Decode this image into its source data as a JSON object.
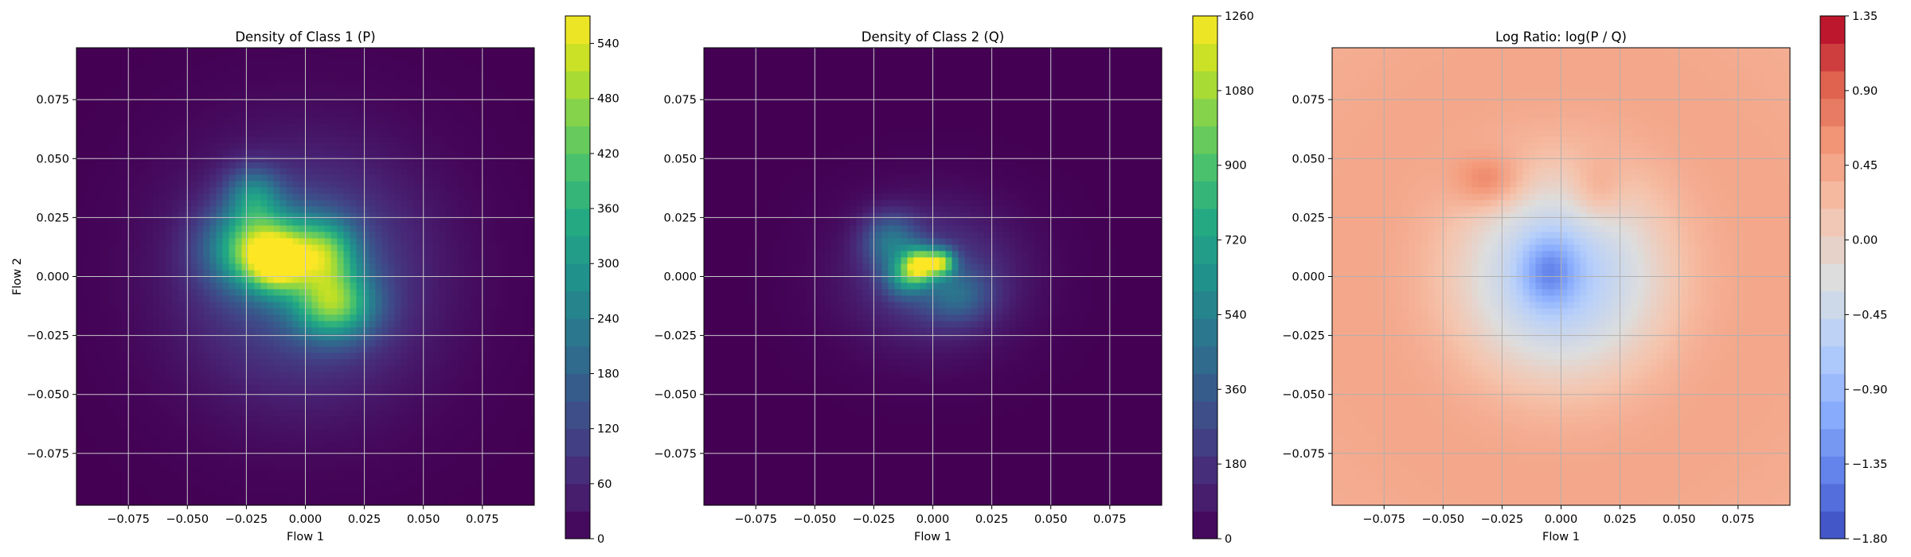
{
  "chart_data": [
    {
      "type": "heatmap",
      "title": "Density of Class 1 (P)",
      "xlabel": "Flow 1",
      "ylabel": "Flow 2",
      "xlim": [
        -0.097,
        0.097
      ],
      "ylim": [
        -0.097,
        0.097
      ],
      "xticks": [
        -0.075,
        -0.05,
        -0.025,
        0.0,
        0.025,
        0.05,
        0.075
      ],
      "yticks": [
        -0.075,
        -0.05,
        -0.025,
        0.0,
        0.025,
        0.05,
        0.075
      ],
      "xtick_labels": [
        "−0.075",
        "−0.050",
        "−0.025",
        "0.000",
        "0.025",
        "0.050",
        "0.075"
      ],
      "ytick_labels": [
        "−0.075",
        "−0.050",
        "−0.025",
        "0.000",
        "0.025",
        "0.050",
        "0.075"
      ],
      "grid": true,
      "colormap": "viridis",
      "colorbar": {
        "min": 0,
        "max": 570,
        "ticks": [
          0,
          60,
          120,
          180,
          240,
          300,
          360,
          420,
          480,
          540
        ],
        "labels": [
          "0",
          "60",
          "120",
          "180",
          "240",
          "300",
          "360",
          "420",
          "480",
          "540"
        ]
      },
      "blobs": [
        {
          "x": -0.02,
          "y": 0.012,
          "sx": 0.014,
          "sy": 0.012,
          "v": 400
        },
        {
          "x": -0.012,
          "y": 0.005,
          "sx": 0.008,
          "sy": 0.008,
          "v": 260
        },
        {
          "x": 0.008,
          "y": 0.01,
          "sx": 0.01,
          "sy": 0.01,
          "v": 300
        },
        {
          "x": 0.012,
          "y": -0.012,
          "sx": 0.012,
          "sy": 0.01,
          "v": 340
        },
        {
          "x": -0.022,
          "y": 0.035,
          "sx": 0.008,
          "sy": 0.008,
          "v": 180
        },
        {
          "x": 0.0,
          "y": 0.0,
          "sx": 0.035,
          "sy": 0.035,
          "v": 150
        }
      ]
    },
    {
      "type": "heatmap",
      "title": "Density of Class 2 (Q)",
      "xlabel": "Flow 1",
      "ylabel": "",
      "xlim": [
        -0.097,
        0.097
      ],
      "ylim": [
        -0.097,
        0.097
      ],
      "xticks": [
        -0.075,
        -0.05,
        -0.025,
        0.0,
        0.025,
        0.05,
        0.075
      ],
      "yticks": [
        -0.075,
        -0.05,
        -0.025,
        0.0,
        0.025,
        0.05,
        0.075
      ],
      "xtick_labels": [
        "−0.075",
        "−0.050",
        "−0.025",
        "0.000",
        "0.025",
        "0.050",
        "0.075"
      ],
      "ytick_labels": [
        "−0.075",
        "−0.050",
        "−0.025",
        "0.000",
        "0.025",
        "0.050",
        "0.075"
      ],
      "grid": true,
      "colormap": "viridis",
      "colorbar": {
        "min": 0,
        "max": 1260,
        "ticks": [
          0,
          180,
          360,
          540,
          720,
          900,
          1080,
          1260
        ],
        "labels": [
          "0",
          "180",
          "360",
          "540",
          "720",
          "900",
          "1080",
          "1260"
        ]
      },
      "blobs": [
        {
          "x": -0.005,
          "y": 0.005,
          "sx": 0.005,
          "sy": 0.005,
          "v": 900
        },
        {
          "x": 0.004,
          "y": 0.006,
          "sx": 0.004,
          "sy": 0.004,
          "v": 750
        },
        {
          "x": -0.012,
          "y": 0.0,
          "sx": 0.006,
          "sy": 0.006,
          "v": 450
        },
        {
          "x": -0.018,
          "y": 0.015,
          "sx": 0.008,
          "sy": 0.008,
          "v": 380
        },
        {
          "x": 0.01,
          "y": -0.008,
          "sx": 0.01,
          "sy": 0.008,
          "v": 280
        },
        {
          "x": 0.0,
          "y": 0.0,
          "sx": 0.025,
          "sy": 0.02,
          "v": 240
        }
      ]
    },
    {
      "type": "heatmap",
      "title": "Log Ratio: log(P / Q)",
      "xlabel": "Flow 1",
      "ylabel": "",
      "xlim": [
        -0.097,
        0.097
      ],
      "ylim": [
        -0.097,
        0.097
      ],
      "xticks": [
        -0.075,
        -0.05,
        -0.025,
        0.0,
        0.025,
        0.05,
        0.075
      ],
      "yticks": [
        -0.075,
        -0.05,
        -0.025,
        0.0,
        0.025,
        0.05,
        0.075
      ],
      "xtick_labels": [
        "−0.075",
        "−0.050",
        "−0.025",
        "0.000",
        "0.025",
        "0.050",
        "0.075"
      ],
      "ytick_labels": [
        "−0.075",
        "−0.050",
        "−0.025",
        "0.000",
        "0.025",
        "0.050",
        "0.075"
      ],
      "grid": true,
      "colormap": "coolwarm",
      "colorbar": {
        "min": -1.8,
        "max": 1.35,
        "ticks": [
          -1.8,
          -1.35,
          -0.9,
          -0.45,
          0.0,
          0.45,
          0.9,
          1.35
        ],
        "labels": [
          "−1.80",
          "−1.35",
          "−0.90",
          "−0.45",
          "0.00",
          "0.45",
          "0.90",
          "1.35"
        ]
      },
      "blobs": [
        {
          "x": 0.0,
          "y": 0.0,
          "sx": 0.03,
          "sy": 0.03,
          "v": -1.2
        },
        {
          "x": -0.005,
          "y": 0.002,
          "sx": 0.008,
          "sy": 0.01,
          "v": -0.8
        },
        {
          "x": -0.03,
          "y": 0.04,
          "sx": 0.01,
          "sy": 0.008,
          "v": 0.4
        },
        {
          "x": 0.015,
          "y": 0.035,
          "sx": 0.008,
          "sy": 0.01,
          "v": 0.3
        },
        {
          "x": 0.0,
          "y": 0.0,
          "sx": 0.2,
          "sy": 0.2,
          "v": 0.65
        }
      ]
    }
  ]
}
